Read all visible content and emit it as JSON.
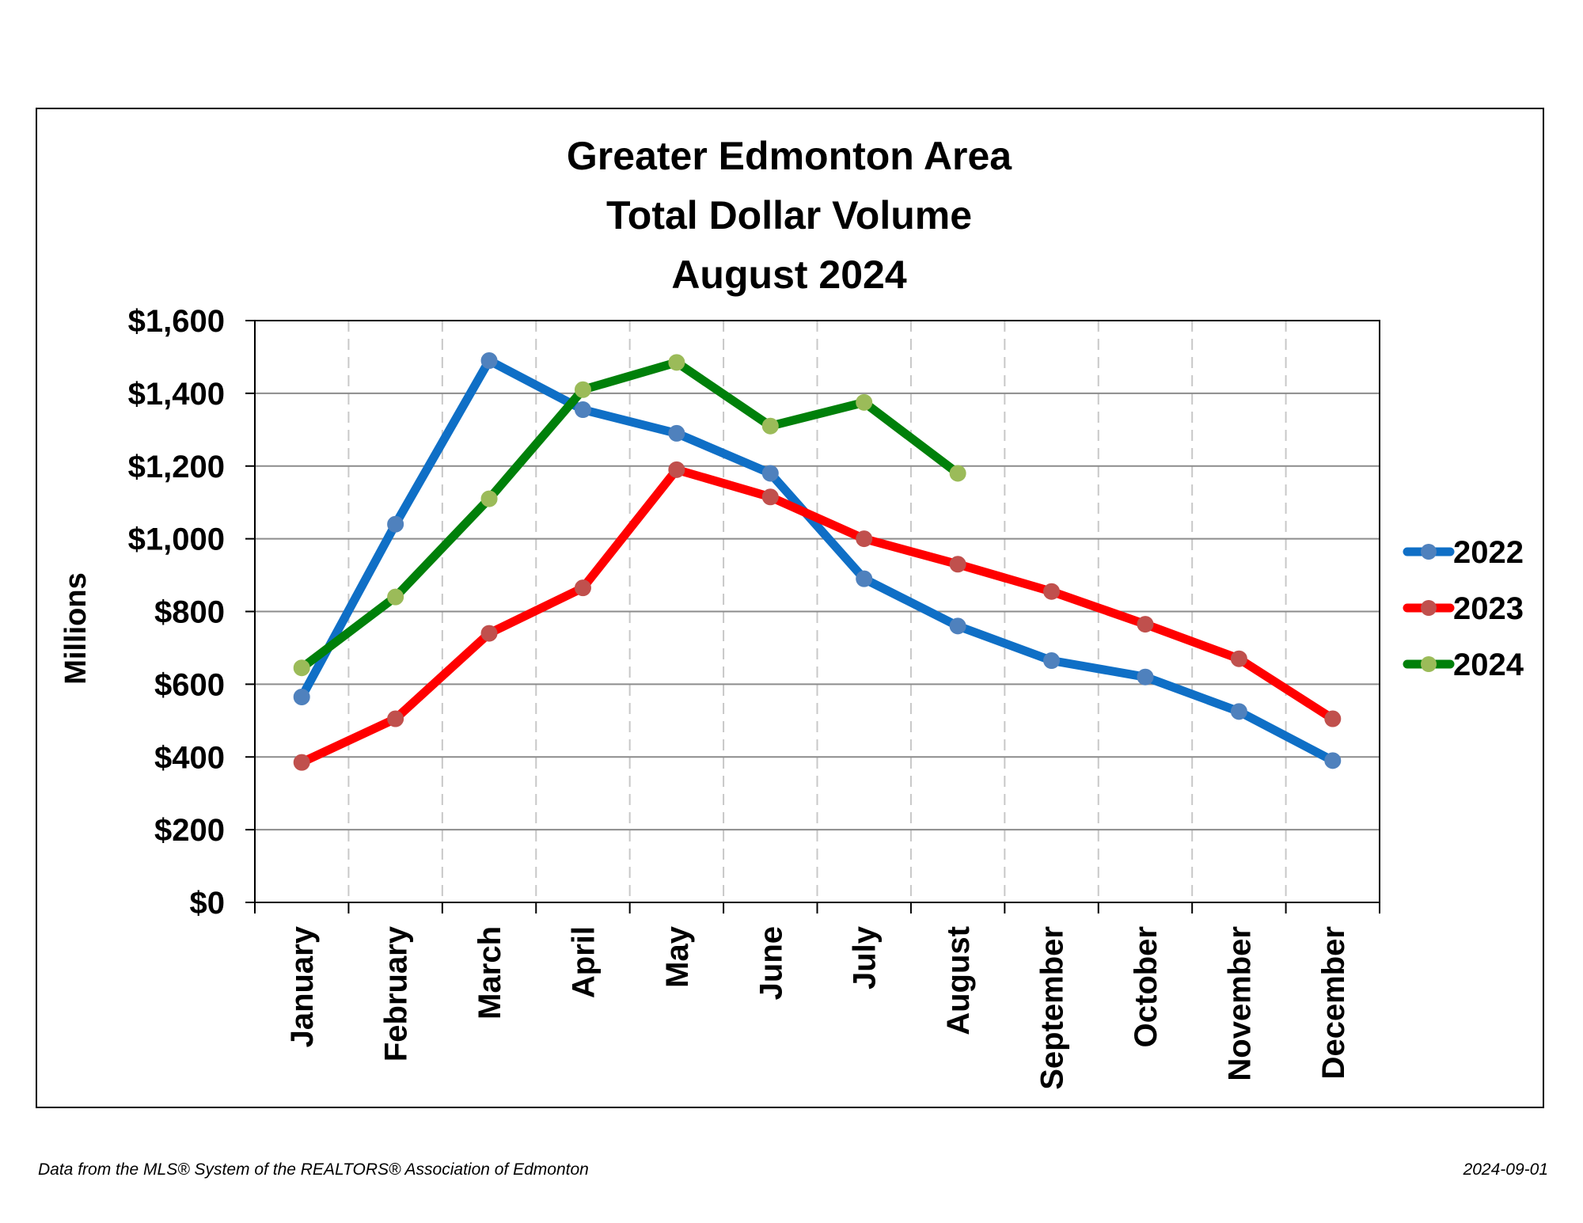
{
  "footer": {
    "source": "Data from the MLS® System of the REALTORS® Association of Edmonton",
    "date": "2024-09-01"
  },
  "chart_data": {
    "type": "line",
    "title_lines": [
      "Greater Edmonton Area",
      "Total Dollar Volume",
      "August 2024"
    ],
    "xlabel": "",
    "ylabel": "Millions",
    "categories": [
      "January",
      "February",
      "March",
      "April",
      "May",
      "June",
      "July",
      "August",
      "September",
      "October",
      "November",
      "December"
    ],
    "ylim": [
      0,
      1600
    ],
    "yticks": [
      0,
      200,
      400,
      600,
      800,
      1000,
      1200,
      1400,
      1600
    ],
    "ytick_labels": [
      "$0",
      "$200",
      "$400",
      "$600",
      "$800",
      "$1,000",
      "$1,200",
      "$1,400",
      "$1,600"
    ],
    "grid": true,
    "legend_position": "right",
    "series": [
      {
        "name": "2022",
        "color": "#0f6fc6",
        "marker_color": "#4f81bd",
        "values": [
          565,
          1040,
          1490,
          1355,
          1290,
          1180,
          890,
          760,
          665,
          620,
          525,
          390
        ]
      },
      {
        "name": "2023",
        "color": "#ff0000",
        "marker_color": "#c0504d",
        "values": [
          385,
          505,
          740,
          865,
          1190,
          1115,
          1000,
          930,
          855,
          765,
          670,
          505
        ]
      },
      {
        "name": "2024",
        "color": "#00800a",
        "marker_color": "#9bbb59",
        "values": [
          645,
          840,
          1110,
          1410,
          1485,
          1310,
          1375,
          1180,
          null,
          null,
          null,
          null
        ]
      }
    ]
  }
}
